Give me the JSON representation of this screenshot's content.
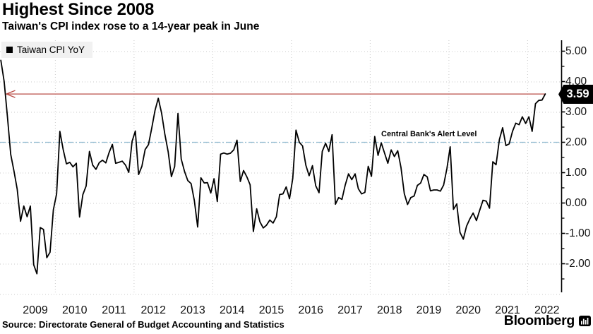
{
  "title": "Highest Since 2008",
  "subtitle": "Taiwan's CPI index rose to a 14-year peak in June",
  "legend": {
    "label": "Taiwan CPI YoY",
    "swatch_color": "#000000"
  },
  "annotations": {
    "latest_value": 3.59,
    "latest_value_label": "3.59",
    "arrow_color": "#b94b45",
    "alert_label": "Central Bank's Alert Level",
    "alert_level": 2.0,
    "alert_line_color": "#8fb9d0"
  },
  "source": "Source: Directorate General of Budget Accounting and Statistics",
  "brand": {
    "name": "Bloomberg"
  },
  "chart_data": {
    "type": "line",
    "title": "Highest Since 2008",
    "subtitle": "Taiwan's CPI index rose to a 14-year peak in June",
    "legend_position": "top-left",
    "grid": "dotted",
    "ylim": [
      -3.0,
      5.35
    ],
    "y_tick_values": [
      5,
      4,
      3,
      2,
      1,
      0,
      -1,
      -2
    ],
    "y_tick_labels": [
      "5.00",
      "4.00",
      "3.00",
      "2.00",
      "1.00",
      "0.00",
      "-1.00",
      "-2.00"
    ],
    "y_minor_ticks": [
      4.5,
      3.5,
      2.5,
      1.5,
      0.5,
      -0.5,
      -1.5,
      -2.5
    ],
    "x_tick_labels": [
      "2009",
      "2010",
      "2011",
      "2012",
      "2013",
      "2014",
      "2015",
      "2016",
      "2017",
      "2018",
      "2019",
      "2020",
      "2021",
      "2022"
    ],
    "x_gridline_years": [
      2010,
      2012,
      2014,
      2016,
      2018,
      2020,
      2022
    ],
    "series": [
      {
        "name": "Taiwan CPI YoY",
        "color": "#000000",
        "frequency": "monthly",
        "start": "2008-08",
        "end": "2022-06",
        "values": [
          4.7,
          4.0,
          2.85,
          1.6,
          1.05,
          0.45,
          -0.6,
          -0.1,
          -0.45,
          -0.1,
          -2.03,
          -2.33,
          -0.81,
          -0.87,
          -1.8,
          -1.62,
          -0.22,
          0.3,
          2.36,
          1.76,
          1.29,
          1.34,
          1.19,
          1.31,
          -0.46,
          0.28,
          0.56,
          1.7,
          1.25,
          1.11,
          1.33,
          1.41,
          1.32,
          1.66,
          1.93,
          1.31,
          1.34,
          1.38,
          1.25,
          1.01,
          2.03,
          2.37,
          0.94,
          1.21,
          1.76,
          1.92,
          2.46,
          3.05,
          3.45,
          2.96,
          2.27,
          1.69,
          0.87,
          1.2,
          2.95,
          1.45,
          1.04,
          0.74,
          0.64,
          0.08,
          -0.79,
          0.83,
          0.66,
          0.67,
          0.33,
          0.8,
          0.05,
          1.61,
          1.65,
          1.61,
          1.64,
          1.75,
          2.07,
          0.71,
          1.07,
          0.86,
          0.6,
          -0.94,
          -0.19,
          -0.62,
          -0.82,
          -0.73,
          -0.56,
          -0.66,
          -0.45,
          0.28,
          0.3,
          0.53,
          0.14,
          0.81,
          2.4,
          2.0,
          1.88,
          1.24,
          0.9,
          1.23,
          0.57,
          0.34,
          1.7,
          1.97,
          1.7,
          2.25,
          -0.04,
          0.18,
          0.12,
          0.59,
          0.96,
          0.77,
          0.96,
          0.47,
          0.3,
          0.35,
          1.21,
          0.88,
          2.19,
          1.57,
          1.98,
          1.64,
          1.31,
          1.75,
          1.53,
          1.72,
          1.17,
          0.31,
          -0.05,
          0.18,
          0.23,
          0.58,
          0.66,
          0.94,
          0.86,
          0.4,
          0.43,
          0.43,
          0.39,
          0.59,
          1.14,
          1.85,
          -0.21,
          -0.03,
          -0.97,
          -1.19,
          -0.76,
          -0.52,
          -0.33,
          -0.58,
          -0.24,
          0.09,
          0.06,
          -0.17,
          1.36,
          1.26,
          2.09,
          2.48,
          1.89,
          1.95,
          2.36,
          2.63,
          2.58,
          2.84,
          2.62,
          2.84,
          2.36,
          3.27,
          3.38,
          3.39,
          3.59
        ]
      }
    ]
  }
}
